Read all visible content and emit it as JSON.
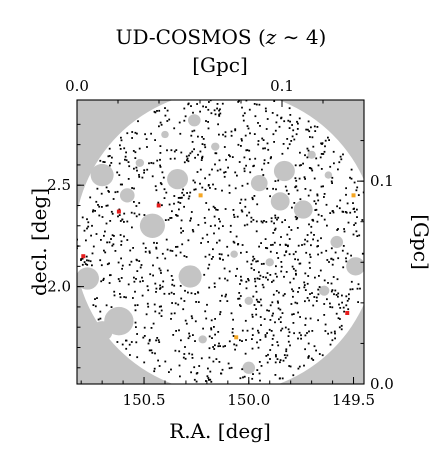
{
  "chart_data": {
    "type": "scatter",
    "title": {
      "prefix": "UD-COSMOS (",
      "var": "z",
      "mid": " ∼ ",
      "num": "4",
      "suffix": ")"
    },
    "xlabel": "R.A. [deg]",
    "ylabel": "decl. [deg]",
    "x2label": "[Gpc]",
    "y2label": "[Gpc]",
    "xlim": [
      150.82,
      149.45
    ],
    "ylim": [
      1.52,
      2.92
    ],
    "x2lim": [
      0.0,
      0.14
    ],
    "y2lim": [
      0.0,
      0.14
    ],
    "xticks": [
      {
        "v": 150.5,
        "t": "150.5"
      },
      {
        "v": 150.0,
        "t": "150.0"
      },
      {
        "v": 149.5,
        "t": "149.5"
      }
    ],
    "yticks": [
      {
        "v": 2.0,
        "t": "2.0"
      },
      {
        "v": 2.5,
        "t": "2.5"
      }
    ],
    "x2ticks": [
      {
        "v": 0.0,
        "t": "0.0"
      },
      {
        "v": 0.1,
        "t": "0.1"
      }
    ],
    "y2ticks": [
      {
        "v": 0.0,
        "t": "0.0"
      },
      {
        "v": 0.1,
        "t": "0.1"
      }
    ],
    "field": {
      "center_ra": 150.11,
      "center_dec": 2.22,
      "radius_deg": 0.735
    },
    "masks": [
      {
        "ra": 150.7,
        "dec": 2.55,
        "r": 0.055
      },
      {
        "ra": 150.58,
        "dec": 2.45,
        "r": 0.035
      },
      {
        "ra": 150.34,
        "dec": 2.53,
        "r": 0.05
      },
      {
        "ra": 150.26,
        "dec": 2.82,
        "r": 0.03
      },
      {
        "ra": 149.95,
        "dec": 2.51,
        "r": 0.04
      },
      {
        "ra": 149.83,
        "dec": 2.57,
        "r": 0.05
      },
      {
        "ra": 149.85,
        "dec": 2.42,
        "r": 0.045
      },
      {
        "ra": 149.74,
        "dec": 2.38,
        "r": 0.045
      },
      {
        "ra": 150.46,
        "dec": 2.3,
        "r": 0.06
      },
      {
        "ra": 150.77,
        "dec": 2.04,
        "r": 0.055
      },
      {
        "ra": 150.28,
        "dec": 2.05,
        "r": 0.055
      },
      {
        "ra": 150.62,
        "dec": 1.83,
        "r": 0.07
      },
      {
        "ra": 150.7,
        "dec": 1.78,
        "r": 0.05
      },
      {
        "ra": 149.49,
        "dec": 2.1,
        "r": 0.045
      },
      {
        "ra": 149.58,
        "dec": 2.22,
        "r": 0.03
      },
      {
        "ra": 150.0,
        "dec": 1.6,
        "r": 0.03
      },
      {
        "ra": 149.64,
        "dec": 1.98,
        "r": 0.025
      },
      {
        "ra": 150.0,
        "dec": 1.93,
        "r": 0.02
      },
      {
        "ra": 150.16,
        "dec": 2.69,
        "r": 0.02
      },
      {
        "ra": 150.4,
        "dec": 2.75,
        "r": 0.018
      },
      {
        "ra": 149.7,
        "dec": 2.65,
        "r": 0.02
      },
      {
        "ra": 150.07,
        "dec": 2.16,
        "r": 0.018
      },
      {
        "ra": 150.52,
        "dec": 2.61,
        "r": 0.02
      },
      {
        "ra": 149.9,
        "dec": 2.12,
        "r": 0.02
      },
      {
        "ra": 150.22,
        "dec": 1.74,
        "r": 0.02
      },
      {
        "ra": 149.62,
        "dec": 2.55,
        "r": 0.018
      }
    ],
    "series": [
      {
        "color": "#000000",
        "n_points": 1250,
        "seed": 7
      },
      {
        "color": "#e61c1c",
        "points": [
          [
            150.62,
            2.37
          ],
          [
            150.43,
            2.4
          ],
          [
            150.79,
            2.15
          ],
          [
            149.53,
            1.87
          ]
        ]
      },
      {
        "color": "#f5a623",
        "points": [
          [
            150.23,
            2.45
          ],
          [
            149.5,
            2.45
          ],
          [
            150.06,
            1.75
          ]
        ]
      }
    ],
    "grid": false,
    "legend": "none"
  }
}
